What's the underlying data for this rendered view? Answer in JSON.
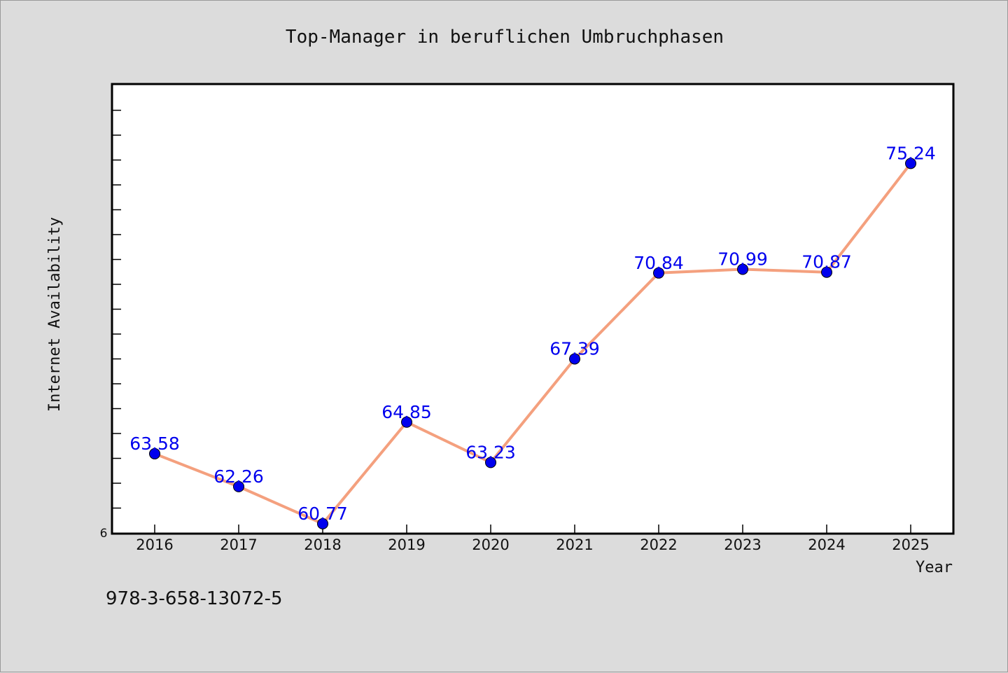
{
  "chart_data": {
    "type": "line",
    "title": "Top-Manager in beruflichen Umbruchphasen",
    "xlabel": "Year",
    "ylabel": "Internet Availability",
    "categories": [
      "2016",
      "2017",
      "2018",
      "2019",
      "2020",
      "2021",
      "2022",
      "2023",
      "2024",
      "2025"
    ],
    "values": [
      63.58,
      62.26,
      60.77,
      64.85,
      63.23,
      67.39,
      70.84,
      70.99,
      70.87,
      75.24
    ],
    "data_labels": [
      "63.58",
      "62.26",
      "60.77",
      "64.85",
      "63.23",
      "67.39",
      "70.84",
      "70.99",
      "70.87",
      "75.24"
    ],
    "ylim": [
      60.4,
      78.4
    ],
    "y_tick_labels": [
      "6"
    ],
    "grid": false,
    "legend": "none",
    "colors": {
      "line": "#f4a07e",
      "marker": "#0000ee",
      "label": "#0000ee",
      "plot_bg": "#ffffff",
      "page_bg": "#dcdcdc"
    }
  },
  "footnote": "978-3-658-13072-5"
}
